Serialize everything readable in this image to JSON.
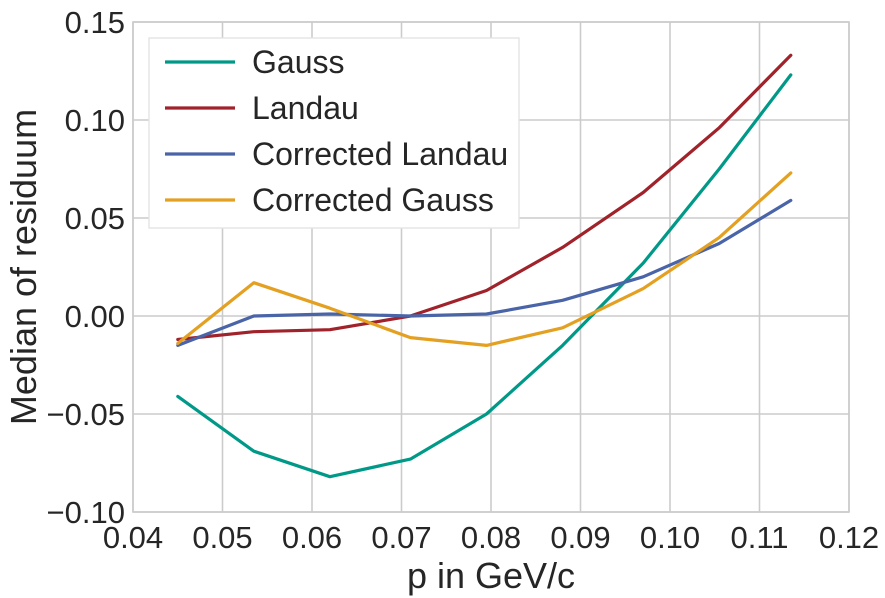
{
  "chart_data": {
    "type": "line",
    "xlabel": "p in GeV/c",
    "ylabel": "Median of residuum",
    "xlim": [
      0.04,
      0.12
    ],
    "ylim": [
      -0.1,
      0.15
    ],
    "x_ticks": [
      "0.04",
      "0.05",
      "0.06",
      "0.07",
      "0.08",
      "0.09",
      "0.10",
      "0.11",
      "0.12"
    ],
    "y_ticks": [
      "−0.10",
      "−0.05",
      "0.00",
      "0.05",
      "0.10",
      "0.15"
    ],
    "grid": true,
    "legend_position": "top-left",
    "x": [
      0.045,
      0.0535,
      0.062,
      0.071,
      0.0795,
      0.088,
      0.097,
      0.1055,
      0.1135
    ],
    "series": [
      {
        "name": "Gauss",
        "color": "#009988",
        "values": [
          -0.041,
          -0.069,
          -0.082,
          -0.073,
          -0.05,
          -0.015,
          0.027,
          0.075,
          0.123
        ]
      },
      {
        "name": "Landau",
        "color": "#a0222a",
        "values": [
          -0.012,
          -0.008,
          -0.007,
          0.0,
          0.013,
          0.035,
          0.063,
          0.096,
          0.133
        ]
      },
      {
        "name": "Corrected Landau",
        "color": "#4a64a8",
        "values": [
          -0.015,
          0.0,
          0.001,
          0.0,
          0.001,
          0.008,
          0.02,
          0.037,
          0.059
        ]
      },
      {
        "name": "Corrected Gauss",
        "color": "#e4a020",
        "values": [
          -0.014,
          0.017,
          0.004,
          -0.011,
          -0.015,
          -0.006,
          0.014,
          0.04,
          0.073
        ]
      }
    ]
  }
}
